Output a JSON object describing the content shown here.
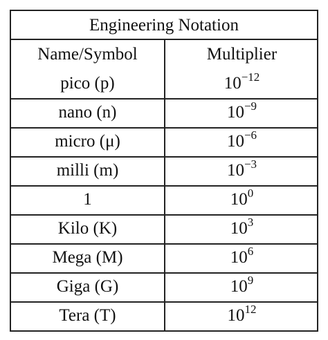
{
  "table": {
    "title": "Engineering Notation",
    "header": [
      "Name/Symbol",
      "Multiplier"
    ],
    "rows": [
      [
        "pico (p)",
        {
          "base": "10",
          "exponent": "−12"
        }
      ],
      [
        "nano (n)",
        {
          "base": "10",
          "exponent": "−9"
        }
      ],
      [
        "micro (μ)",
        {
          "base": "10",
          "exponent": "−6"
        }
      ],
      [
        "milli (m)",
        {
          "base": "10",
          "exponent": "−3"
        }
      ],
      [
        "1",
        {
          "base": "10",
          "exponent": "0"
        }
      ],
      [
        "Kilo (K)",
        {
          "base": "10",
          "exponent": "3"
        }
      ],
      [
        "Mega (M)",
        {
          "base": "10",
          "exponent": "6"
        }
      ],
      [
        "Giga (G)",
        {
          "base": "10",
          "exponent": "9"
        }
      ],
      [
        "Tera (T)",
        {
          "base": "10",
          "exponent": "12"
        }
      ]
    ]
  }
}
